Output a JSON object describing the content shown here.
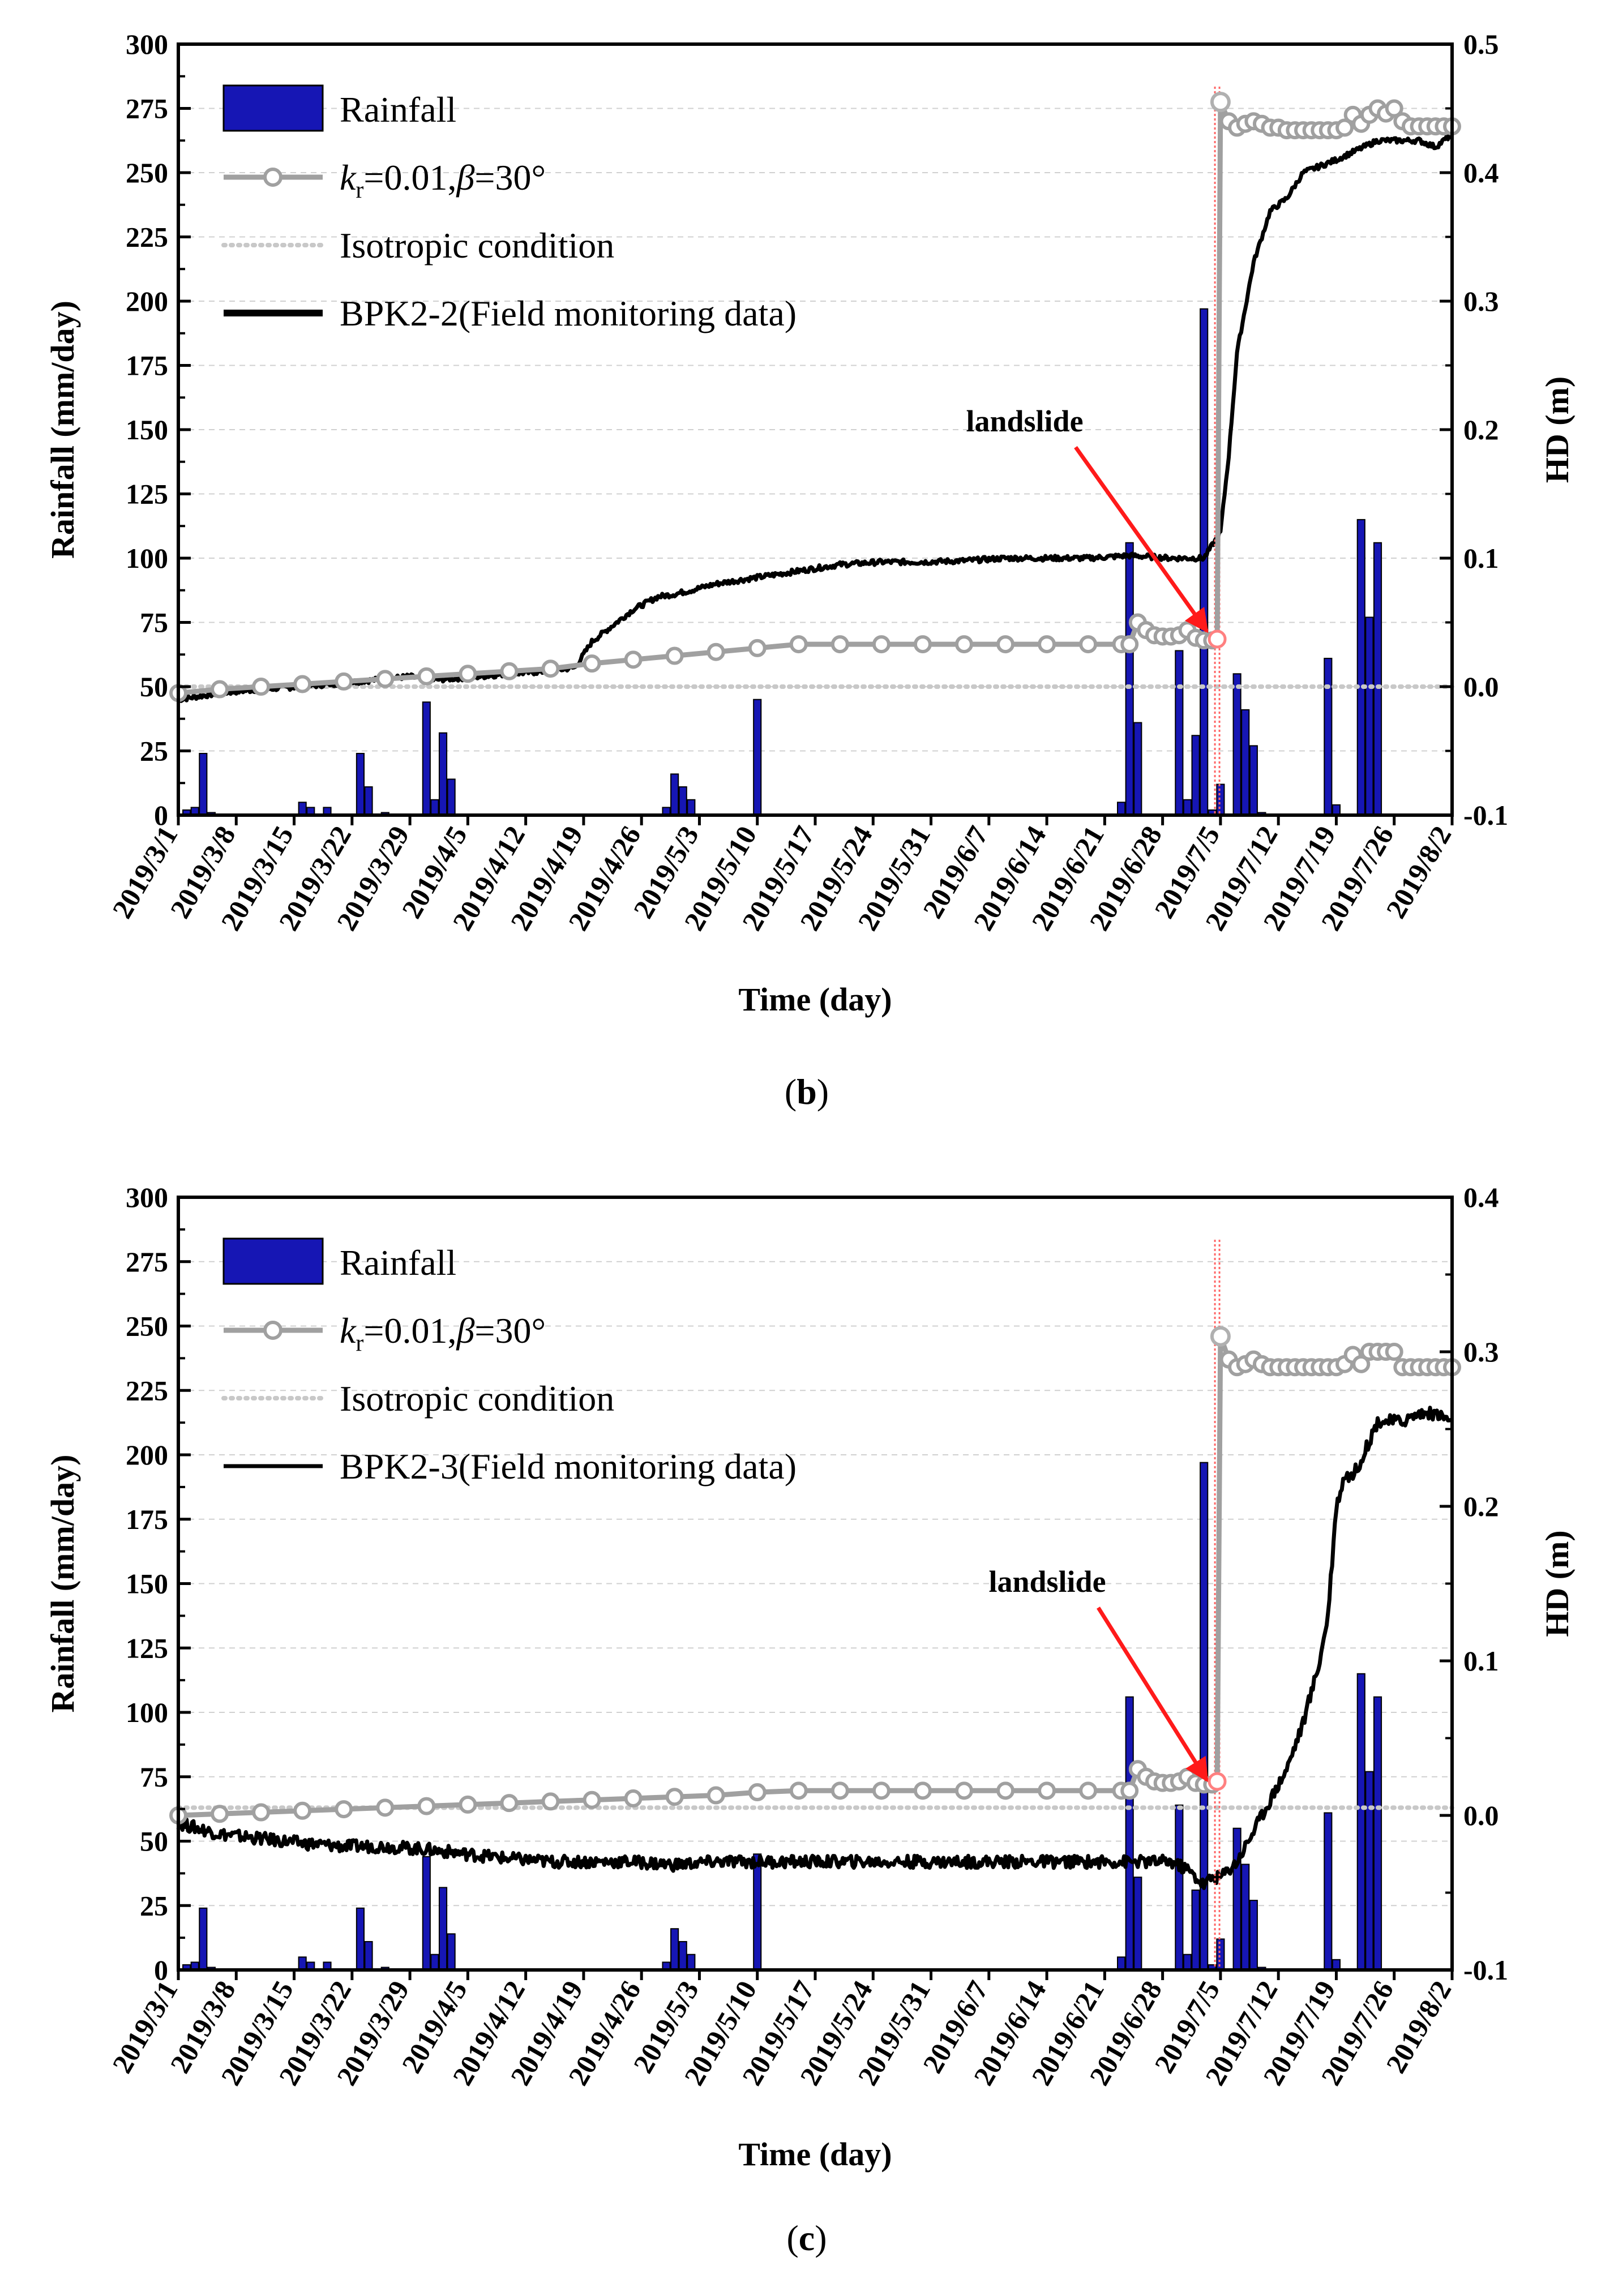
{
  "chart_data": [
    {
      "type": "bar+line",
      "panel_label": "(b)",
      "panel_letter": "b",
      "xlabel": "Time (day)",
      "ylabel_left": "Rainfall (mm/day)",
      "ylabel_right": "HD (m)",
      "ylim_left": [
        0,
        300
      ],
      "ylim_right": [
        -0.1,
        0.5
      ],
      "left_ticks": [
        "0",
        "25",
        "50",
        "75",
        "100",
        "125",
        "150",
        "175",
        "200",
        "225",
        "250",
        "275",
        "300"
      ],
      "right_ticks": [
        "-0.1",
        "0.0",
        "0.1",
        "0.2",
        "0.3",
        "0.4",
        "0.5"
      ],
      "x_range_days": [
        0,
        154
      ],
      "x_tick_labels": [
        "2019/3/1",
        "2019/3/8",
        "2019/3/15",
        "2019/3/22",
        "2019/3/29",
        "2019/4/5",
        "2019/4/12",
        "2019/4/19",
        "2019/4/26",
        "2019/5/3",
        "2019/5/10",
        "2019/5/17",
        "2019/5/24",
        "2019/5/31",
        "2019/6/7",
        "2019/6/14",
        "2019/6/21",
        "2019/6/28",
        "2019/7/5",
        "2019/7/12",
        "2019/7/19",
        "2019/7/26",
        "2019/8/2"
      ],
      "x_tick_days": [
        0,
        7,
        14,
        21,
        28,
        35,
        42,
        49,
        56,
        63,
        70,
        77,
        84,
        91,
        98,
        105,
        112,
        119,
        126,
        133,
        140,
        147,
        154
      ],
      "legend": {
        "rainfall": "Rainfall",
        "model_k": "k",
        "model_sub": "r",
        "model_rest": "=0.01,",
        "model_beta": "β",
        "model_angle": "=30°",
        "isotropic": "Isotropic condition",
        "field": "BPK2-2(Field monitoring data)"
      },
      "annotation": "landslide",
      "rainfall_days": [
        1,
        2,
        3,
        4,
        15,
        16,
        18,
        22,
        23,
        25,
        30,
        31,
        32,
        33,
        59,
        60,
        61,
        62,
        70,
        114,
        115,
        116,
        121,
        122,
        123,
        124,
        125,
        126,
        128,
        129,
        130,
        131,
        139,
        140,
        143,
        144,
        145
      ],
      "rainfall_values": [
        2,
        3,
        24,
        1,
        5,
        3,
        3,
        24,
        11,
        1,
        44,
        6,
        32,
        14,
        3,
        16,
        11,
        6,
        45,
        5,
        106,
        36,
        64,
        6,
        31,
        197,
        2,
        12,
        55,
        41,
        27,
        1,
        61,
        4,
        115,
        77,
        106
      ],
      "model_days": [
        0,
        5,
        10,
        15,
        20,
        25,
        30,
        35,
        40,
        45,
        50,
        55,
        60,
        65,
        70,
        75,
        80,
        85,
        90,
        95,
        100,
        105,
        110,
        114,
        115,
        116,
        117,
        118,
        119,
        120,
        121,
        122,
        123,
        124,
        125,
        125.6,
        126,
        127,
        128,
        129,
        130,
        131,
        132,
        133,
        134,
        135,
        136,
        137,
        138,
        139,
        140,
        141,
        142,
        143,
        144,
        145,
        146,
        147,
        148,
        149,
        150,
        151,
        152,
        153,
        154
      ],
      "model_values": [
        -0.005,
        -0.002,
        0.0,
        0.002,
        0.004,
        0.006,
        0.008,
        0.01,
        0.012,
        0.014,
        0.018,
        0.021,
        0.024,
        0.027,
        0.03,
        0.033,
        0.033,
        0.033,
        0.033,
        0.033,
        0.033,
        0.033,
        0.033,
        0.033,
        0.033,
        0.05,
        0.044,
        0.04,
        0.039,
        0.039,
        0.04,
        0.044,
        0.038,
        0.036,
        0.036,
        0.037,
        0.455,
        0.44,
        0.435,
        0.438,
        0.44,
        0.438,
        0.435,
        0.435,
        0.433,
        0.433,
        0.433,
        0.433,
        0.433,
        0.433,
        0.433,
        0.435,
        0.445,
        0.438,
        0.445,
        0.45,
        0.446,
        0.45,
        0.44,
        0.436,
        0.436,
        0.436,
        0.436,
        0.436,
        0.436
      ],
      "iso_days": [
        0,
        154
      ],
      "iso_values": [
        0.0,
        0.0
      ],
      "field_days": [
        0,
        5,
        10,
        15,
        20,
        25,
        28,
        30,
        35,
        40,
        45,
        48,
        50,
        52,
        55,
        58,
        60,
        62,
        65,
        70,
        75,
        80,
        85,
        90,
        95,
        100,
        105,
        110,
        115,
        120,
        124,
        126,
        127,
        128,
        130,
        132,
        134,
        136,
        140,
        145,
        148,
        150,
        152,
        154
      ],
      "field_values": [
        -0.01,
        -0.005,
        -0.002,
        0.0,
        0.003,
        0.006,
        0.008,
        0.005,
        0.007,
        0.01,
        0.012,
        0.015,
        0.035,
        0.045,
        0.06,
        0.07,
        0.072,
        0.075,
        0.08,
        0.085,
        0.09,
        0.095,
        0.097,
        0.097,
        0.098,
        0.1,
        0.1,
        0.1,
        0.102,
        0.1,
        0.1,
        0.12,
        0.18,
        0.26,
        0.33,
        0.37,
        0.38,
        0.4,
        0.41,
        0.425,
        0.425,
        0.425,
        0.42,
        0.43
      ]
    },
    {
      "type": "bar+line",
      "panel_label": "(c)",
      "panel_letter": "c",
      "xlabel": "Time (day)",
      "ylabel_left": "Rainfall (mm/day)",
      "ylabel_right": "HD (m)",
      "ylim_left": [
        0,
        300
      ],
      "ylim_right": [
        -0.1,
        0.4
      ],
      "left_ticks": [
        "0",
        "25",
        "50",
        "75",
        "100",
        "125",
        "150",
        "175",
        "200",
        "225",
        "250",
        "275",
        "300"
      ],
      "right_ticks": [
        "-0.1",
        "0.0",
        "0.1",
        "0.2",
        "0.3",
        "0.4"
      ],
      "x_range_days": [
        0,
        154
      ],
      "x_tick_labels": [
        "2019/3/1",
        "2019/3/8",
        "2019/3/15",
        "2019/3/22",
        "2019/3/29",
        "2019/4/5",
        "2019/4/12",
        "2019/4/19",
        "2019/4/26",
        "2019/5/3",
        "2019/5/10",
        "2019/5/17",
        "2019/5/24",
        "2019/5/31",
        "2019/6/7",
        "2019/6/14",
        "2019/6/21",
        "2019/6/28",
        "2019/7/5",
        "2019/7/12",
        "2019/7/19",
        "2019/7/26",
        "2019/8/2"
      ],
      "x_tick_days": [
        0,
        7,
        14,
        21,
        28,
        35,
        42,
        49,
        56,
        63,
        70,
        77,
        84,
        91,
        98,
        105,
        112,
        119,
        126,
        133,
        140,
        147,
        154
      ],
      "legend": {
        "rainfall": "Rainfall",
        "model_k": "k",
        "model_sub": "r",
        "model_rest": "=0.01,",
        "model_beta": "β",
        "model_angle": "=30°",
        "isotropic": "Isotropic condition",
        "field": "BPK2-3(Field monitoring data)"
      },
      "annotation": "landslide",
      "rainfall_days": [
        1,
        2,
        3,
        4,
        15,
        16,
        18,
        22,
        23,
        25,
        30,
        31,
        32,
        33,
        59,
        60,
        61,
        62,
        70,
        114,
        115,
        116,
        121,
        122,
        123,
        124,
        125,
        126,
        128,
        129,
        130,
        131,
        139,
        140,
        143,
        144,
        145
      ],
      "rainfall_values": [
        2,
        3,
        24,
        1,
        5,
        3,
        3,
        24,
        11,
        1,
        44,
        6,
        32,
        14,
        3,
        16,
        11,
        6,
        45,
        5,
        106,
        36,
        64,
        6,
        31,
        197,
        2,
        12,
        55,
        41,
        27,
        1,
        61,
        4,
        115,
        77,
        106
      ],
      "model_days": [
        0,
        5,
        10,
        15,
        20,
        25,
        30,
        35,
        40,
        45,
        50,
        55,
        60,
        65,
        70,
        75,
        80,
        85,
        90,
        95,
        100,
        105,
        110,
        114,
        115,
        116,
        117,
        118,
        119,
        120,
        121,
        122,
        123,
        124,
        125,
        125.6,
        126,
        127,
        128,
        129,
        130,
        131,
        132,
        133,
        134,
        135,
        136,
        137,
        138,
        139,
        140,
        141,
        142,
        143,
        144,
        145,
        146,
        147,
        148,
        149,
        150,
        151,
        152,
        153,
        154
      ],
      "model_values": [
        0.0,
        0.001,
        0.002,
        0.003,
        0.004,
        0.005,
        0.006,
        0.007,
        0.008,
        0.009,
        0.01,
        0.011,
        0.012,
        0.013,
        0.015,
        0.016,
        0.016,
        0.016,
        0.016,
        0.016,
        0.016,
        0.016,
        0.016,
        0.016,
        0.016,
        0.03,
        0.025,
        0.022,
        0.021,
        0.021,
        0.022,
        0.025,
        0.021,
        0.02,
        0.02,
        0.022,
        0.31,
        0.295,
        0.29,
        0.292,
        0.295,
        0.292,
        0.29,
        0.29,
        0.29,
        0.29,
        0.29,
        0.29,
        0.29,
        0.29,
        0.29,
        0.292,
        0.298,
        0.292,
        0.3,
        0.3,
        0.3,
        0.3,
        0.29,
        0.29,
        0.29,
        0.29,
        0.29,
        0.29,
        0.29
      ],
      "iso_days": [
        0,
        154
      ],
      "iso_values": [
        0.005,
        0.005
      ],
      "field_days": [
        0,
        5,
        10,
        15,
        20,
        25,
        30,
        35,
        40,
        45,
        50,
        55,
        60,
        65,
        70,
        75,
        80,
        85,
        90,
        95,
        100,
        105,
        110,
        115,
        120,
        122,
        124,
        125,
        126,
        128,
        130,
        132,
        134,
        136,
        137,
        138,
        139,
        140,
        141,
        142,
        143,
        145,
        148,
        150,
        152,
        154
      ],
      "field_values": [
        -0.005,
        -0.012,
        -0.015,
        -0.018,
        -0.02,
        -0.02,
        -0.022,
        -0.025,
        -0.028,
        -0.03,
        -0.03,
        -0.03,
        -0.032,
        -0.03,
        -0.03,
        -0.03,
        -0.03,
        -0.03,
        -0.03,
        -0.03,
        -0.03,
        -0.03,
        -0.03,
        -0.03,
        -0.03,
        -0.035,
        -0.045,
        -0.04,
        -0.04,
        -0.03,
        -0.01,
        0.01,
        0.03,
        0.06,
        0.08,
        0.1,
        0.13,
        0.2,
        0.22,
        0.22,
        0.23,
        0.255,
        0.255,
        0.26,
        0.26,
        0.255
      ]
    }
  ]
}
